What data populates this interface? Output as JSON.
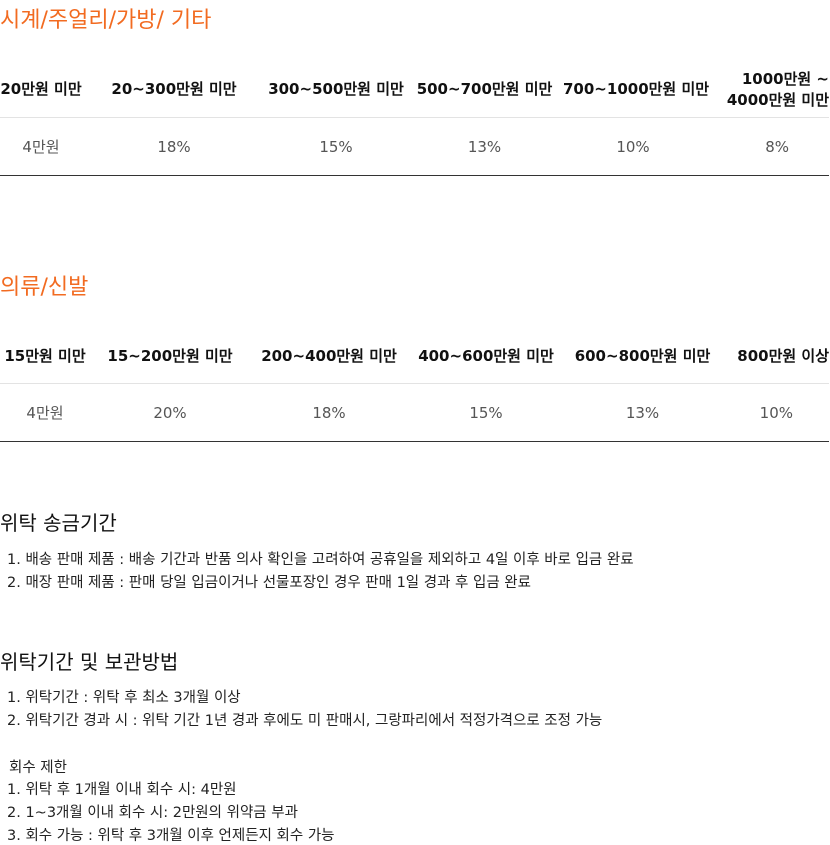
{
  "watch": {
    "title": "시계/주얼리/가방/ 기타",
    "headers": [
      "20만원 미만",
      "20~300만원 미만",
      "300~500만원 미만",
      "500~700만원 미만",
      "700~1000만원 미만",
      "1000만원 ~\n4000만원 미만"
    ],
    "values": [
      "4만원",
      "18%",
      "15%",
      "13%",
      "10%",
      "8%"
    ]
  },
  "clothing": {
    "title": "의류/신발",
    "headers": [
      "15만원 미만",
      "15~200만원 미만",
      "200~400만원 미만",
      "400~600만원 미만",
      "600~800만원 미만",
      "800만원 이상"
    ],
    "values": [
      "4만원",
      "20%",
      "18%",
      "15%",
      "13%",
      "10%"
    ]
  },
  "remittance": {
    "title": "위탁 송금기간",
    "items": [
      "1. 배송  판매 제품 : 배송 기간과 반품 의사 확인을 고려하여 공휴일을 제외하고 4일 이후 바로 입금 완료",
      "2. 매장 판매 제품 : 판매 당일 입금이거나 선물포장인 경우 판매 1일 경과 후 입금 완료"
    ]
  },
  "storage": {
    "title": "위탁기간 및 보관방법",
    "items": [
      "1. 위탁기간 : 위탁 후 최소 3개월 이상",
      "2. 위탁기간 경과 시 : 위탁 기간 1년 경과 후에도 미 판매시, 그랑파리에서 적정가격으로 조정 가능"
    ]
  },
  "recall": {
    "title": "회수 제한",
    "items": [
      "1. 위탁 후 1개월 이내 회수 시: 4만원",
      "2. 1~3개월 이내 회수 시: 2만원의 위약금 부과",
      "3. 회수 가능 : 위탁 후 3개월 이후 언제든지 회수 가능"
    ]
  }
}
